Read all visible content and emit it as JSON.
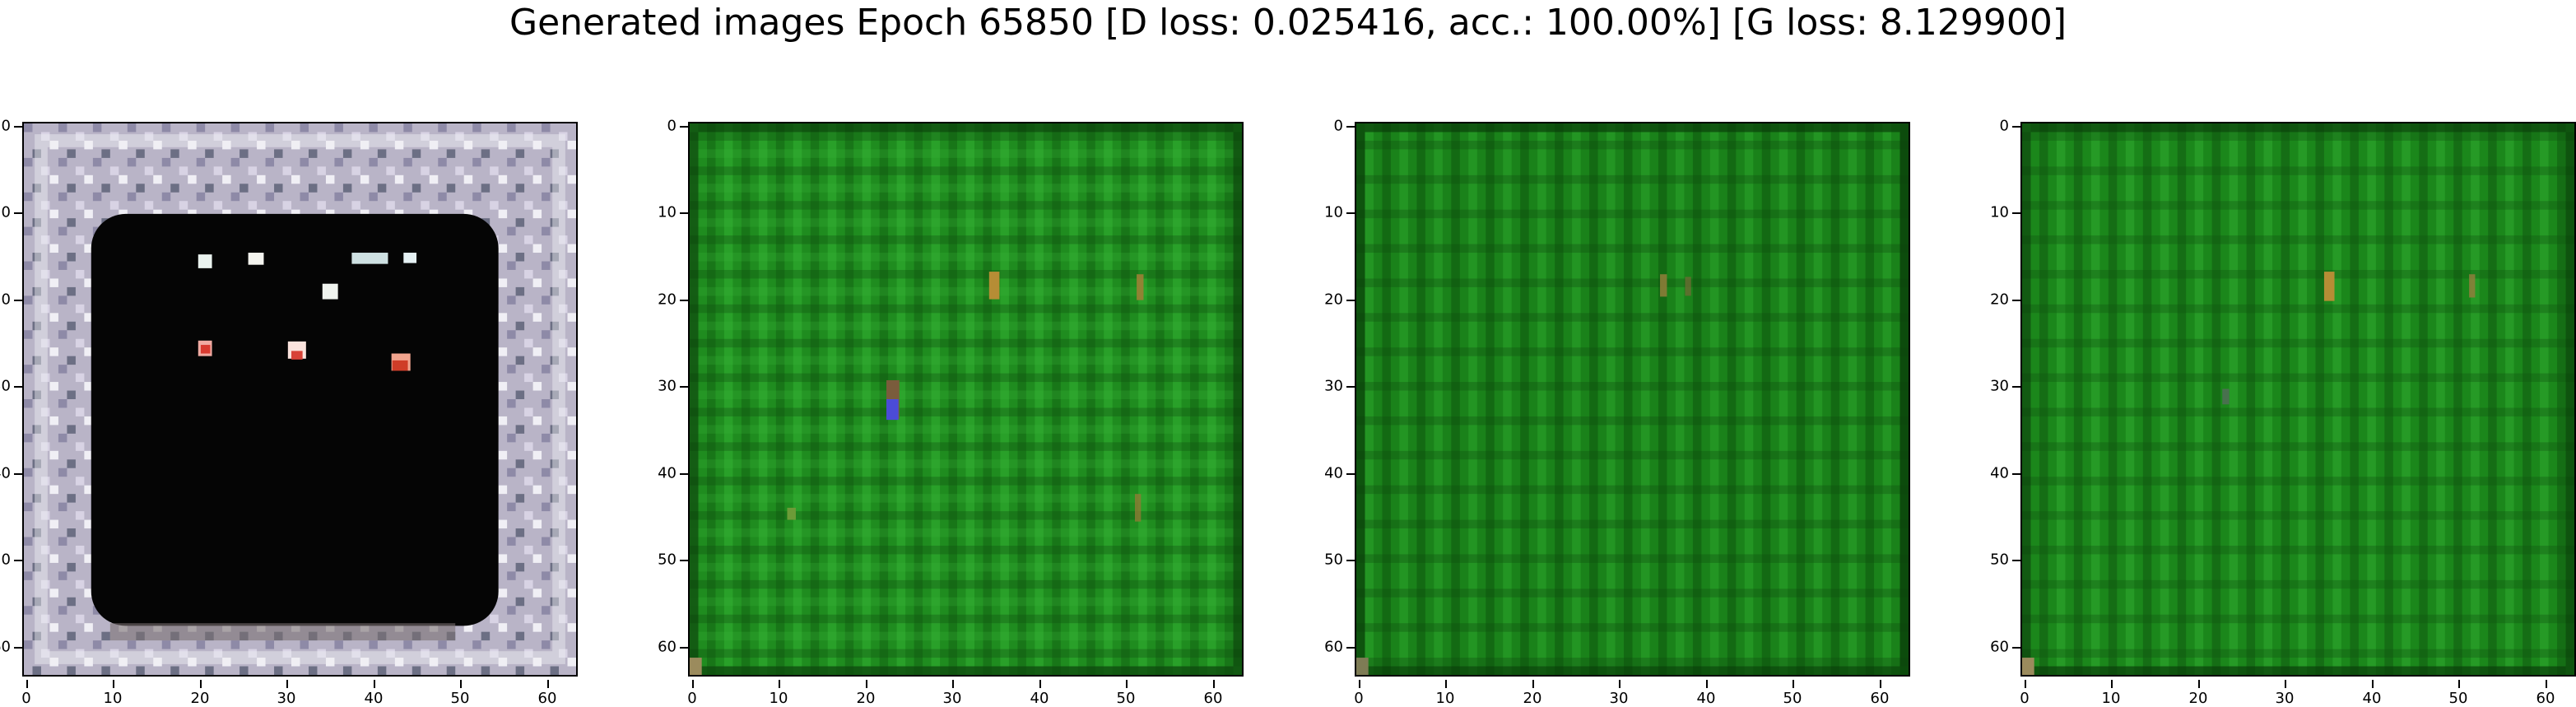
{
  "figure": {
    "title": "Generated images Epoch 65850 [D loss: 0.025416, acc.: 100.00%] [G loss: 8.129900]"
  },
  "axes": {
    "x_ticks": [
      "0",
      "10",
      "20",
      "30",
      "40",
      "50",
      "60"
    ],
    "y_ticks": [
      "0",
      "10",
      "20",
      "30",
      "40",
      "50",
      "60"
    ],
    "range": [
      0,
      63
    ]
  },
  "panels": [
    {
      "name": "generated-image-1",
      "palette": {
        "background": "#b8b4c8",
        "main": "#050505",
        "accent": "#e85040"
      }
    },
    {
      "name": "generated-image-2",
      "palette": {
        "background": "#0f5a0f",
        "main": "#1d8c1d",
        "accent": "#b58d35"
      }
    },
    {
      "name": "generated-image-3",
      "palette": {
        "background": "#0f5a0f",
        "main": "#1a821a",
        "accent": "#9b8b3c"
      }
    },
    {
      "name": "generated-image-4",
      "palette": {
        "background": "#0f5a0f",
        "main": "#1b871b",
        "accent": "#b58d35"
      }
    }
  ]
}
